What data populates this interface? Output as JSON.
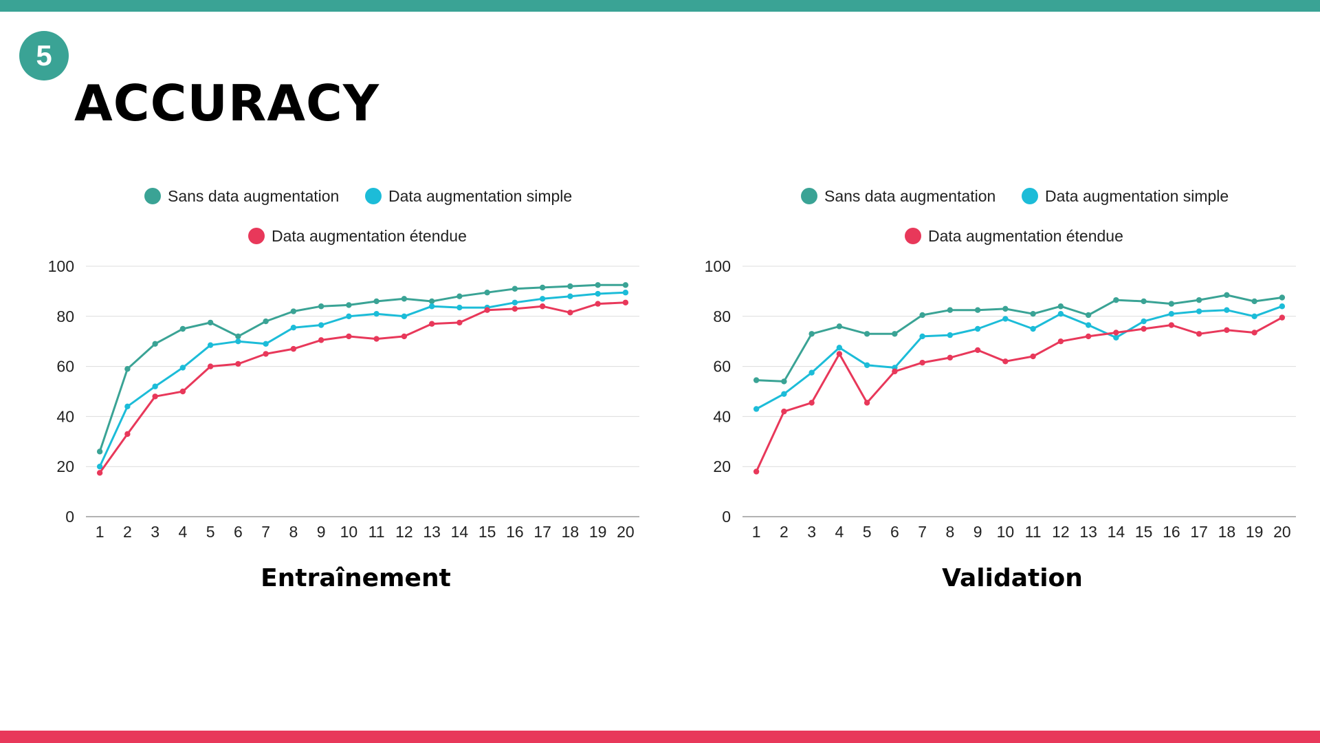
{
  "slide": {
    "number": "5",
    "title": "ACCURACY"
  },
  "colors": {
    "top_bar": "#3aa395",
    "bottom_bar": "#e8385a",
    "badge": "#3aa395"
  },
  "chart_data": [
    {
      "type": "line",
      "title": "Entraînement",
      "xlabel": "",
      "ylabel": "",
      "ylim": [
        0,
        100
      ],
      "yticks": [
        0,
        20,
        40,
        60,
        80,
        100
      ],
      "grid": true,
      "legend_position": "top",
      "categories": [
        1,
        2,
        3,
        4,
        5,
        6,
        7,
        8,
        9,
        10,
        11,
        12,
        13,
        14,
        15,
        16,
        17,
        18,
        19,
        20
      ],
      "series": [
        {
          "name": "Sans data augmentation",
          "color": "#3aa395",
          "values": [
            26,
            59,
            69,
            75,
            77.5,
            72,
            78,
            82,
            84,
            84.5,
            86,
            87,
            86,
            88,
            89.5,
            91,
            91.5,
            92,
            92.5,
            92.5
          ]
        },
        {
          "name": "Data augmentation simple",
          "color": "#1cbcd8",
          "values": [
            20,
            44,
            52,
            59.5,
            68.5,
            70,
            69,
            75.5,
            76.5,
            80,
            81,
            80,
            84,
            83.5,
            83.5,
            85.5,
            87,
            88,
            89,
            89.5
          ]
        },
        {
          "name": "Data augmentation étendue",
          "color": "#e8385a",
          "values": [
            17.5,
            33,
            48,
            50,
            60,
            61,
            65,
            67,
            70.5,
            72,
            71,
            72,
            77,
            77.5,
            82.5,
            83,
            84,
            81.5,
            85,
            85.5
          ]
        }
      ]
    },
    {
      "type": "line",
      "title": "Validation",
      "xlabel": "",
      "ylabel": "",
      "ylim": [
        0,
        100
      ],
      "yticks": [
        0,
        20,
        40,
        60,
        80,
        100
      ],
      "grid": true,
      "legend_position": "top",
      "categories": [
        1,
        2,
        3,
        4,
        5,
        6,
        7,
        8,
        9,
        10,
        11,
        12,
        13,
        14,
        15,
        16,
        17,
        18,
        19,
        20
      ],
      "series": [
        {
          "name": "Sans data augmentation",
          "color": "#3aa395",
          "values": [
            54.5,
            54,
            73,
            76,
            73,
            73,
            80.5,
            82.5,
            82.5,
            83,
            81,
            84,
            80.5,
            86.5,
            86,
            85,
            86.5,
            88.5,
            86,
            87.5
          ]
        },
        {
          "name": "Data augmentation simple",
          "color": "#1cbcd8",
          "values": [
            43,
            49,
            57.5,
            67.5,
            60.5,
            59.5,
            72,
            72.5,
            75,
            79,
            75,
            81,
            76.5,
            71.5,
            78,
            81,
            82,
            82.5,
            80,
            84
          ]
        },
        {
          "name": "Data augmentation étendue",
          "color": "#e8385a",
          "values": [
            18,
            42,
            45.5,
            65,
            45.5,
            58,
            61.5,
            63.5,
            66.5,
            62,
            64,
            70,
            72,
            73.5,
            75,
            76.5,
            73,
            74.5,
            73.5,
            79.5
          ]
        }
      ]
    }
  ]
}
